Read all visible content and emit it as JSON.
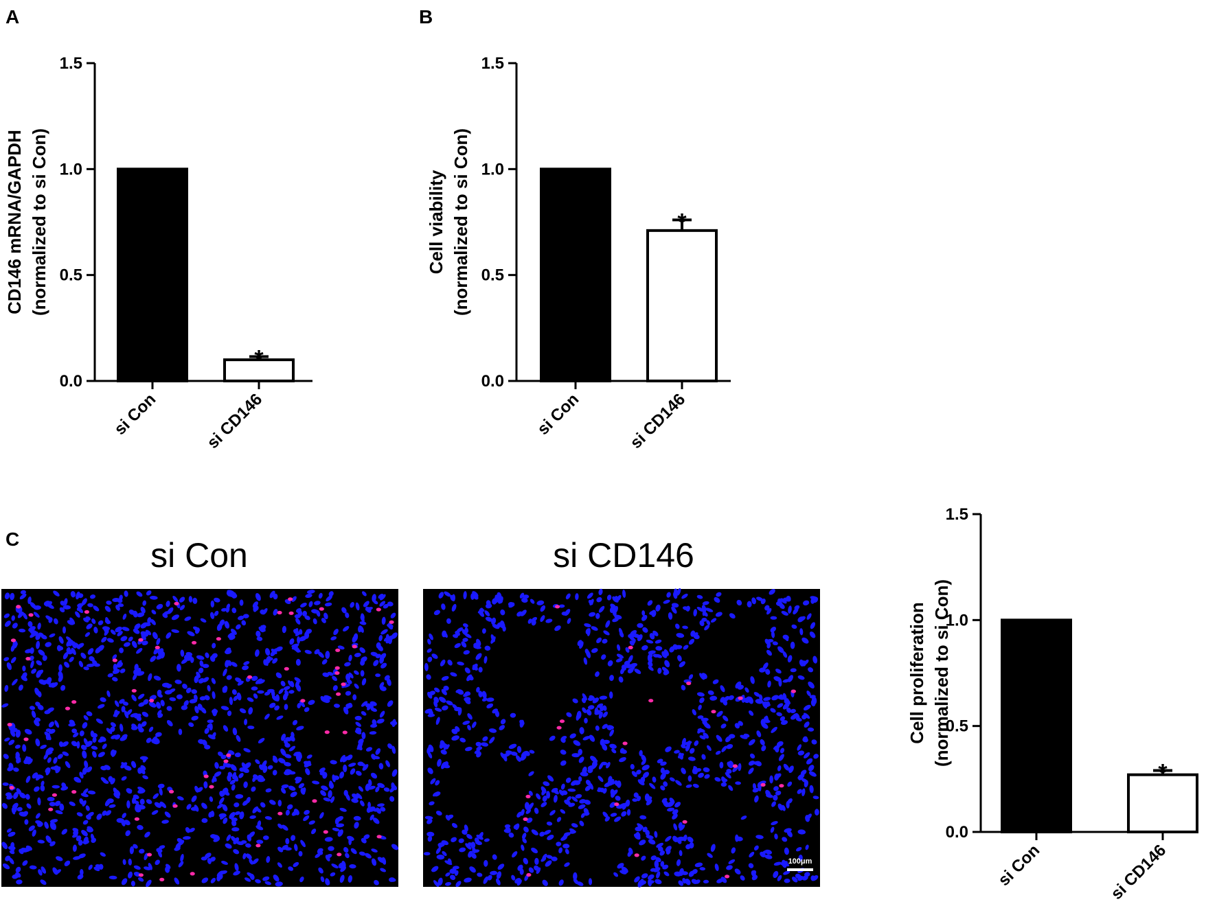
{
  "panels": {
    "a": {
      "letter": "A"
    },
    "b": {
      "letter": "B"
    },
    "c": {
      "letter": "C"
    }
  },
  "micrographs": [
    {
      "title": "si Con",
      "nuclei_color": "#1a1aff",
      "marker_color": "#ff2aa8",
      "dense_sparse": "dense",
      "scale_label": ""
    },
    {
      "title": "si CD146",
      "nuclei_color": "#1a1aff",
      "marker_color": "#ff2aa8",
      "dense_sparse": "sparse",
      "scale_label": "100μm"
    }
  ],
  "chart_data": [
    {
      "type": "bar",
      "panel": "A",
      "categories": [
        "si Con",
        "si CD146"
      ],
      "values": [
        1.0,
        0.1
      ],
      "errors": [
        0,
        0.015
      ],
      "significance": [
        "",
        "*"
      ],
      "fill": [
        "#000000",
        "#ffffff"
      ],
      "ylabel_lines": [
        "CD146 mRNA/GAPDH",
        "(normalized to si Con)"
      ],
      "ylim": [
        0,
        1.5
      ],
      "yticks": [
        "0.0",
        "0.5",
        "1.0",
        "1.5"
      ]
    },
    {
      "type": "bar",
      "panel": "B",
      "categories": [
        "si Con",
        "si CD146"
      ],
      "values": [
        1.0,
        0.71
      ],
      "errors": [
        0,
        0.05
      ],
      "significance": [
        "",
        "*"
      ],
      "fill": [
        "#000000",
        "#ffffff"
      ],
      "ylabel_lines": [
        "Cell viability",
        "(normalized to si Con)"
      ],
      "ylim": [
        0,
        1.5
      ],
      "yticks": [
        "0.0",
        "0.5",
        "1.0",
        "1.5"
      ]
    },
    {
      "type": "bar",
      "panel": "C",
      "categories": [
        "si Con",
        "si CD146"
      ],
      "values": [
        1.0,
        0.27
      ],
      "errors": [
        0,
        0.02
      ],
      "significance": [
        "",
        "*"
      ],
      "fill": [
        "#000000",
        "#ffffff"
      ],
      "ylabel_lines": [
        "Cell proliferation",
        "(normalized to si Con)"
      ],
      "ylim": [
        0,
        1.5
      ],
      "yticks": [
        "0.0",
        "0.5",
        "1.0",
        "1.5"
      ]
    }
  ]
}
